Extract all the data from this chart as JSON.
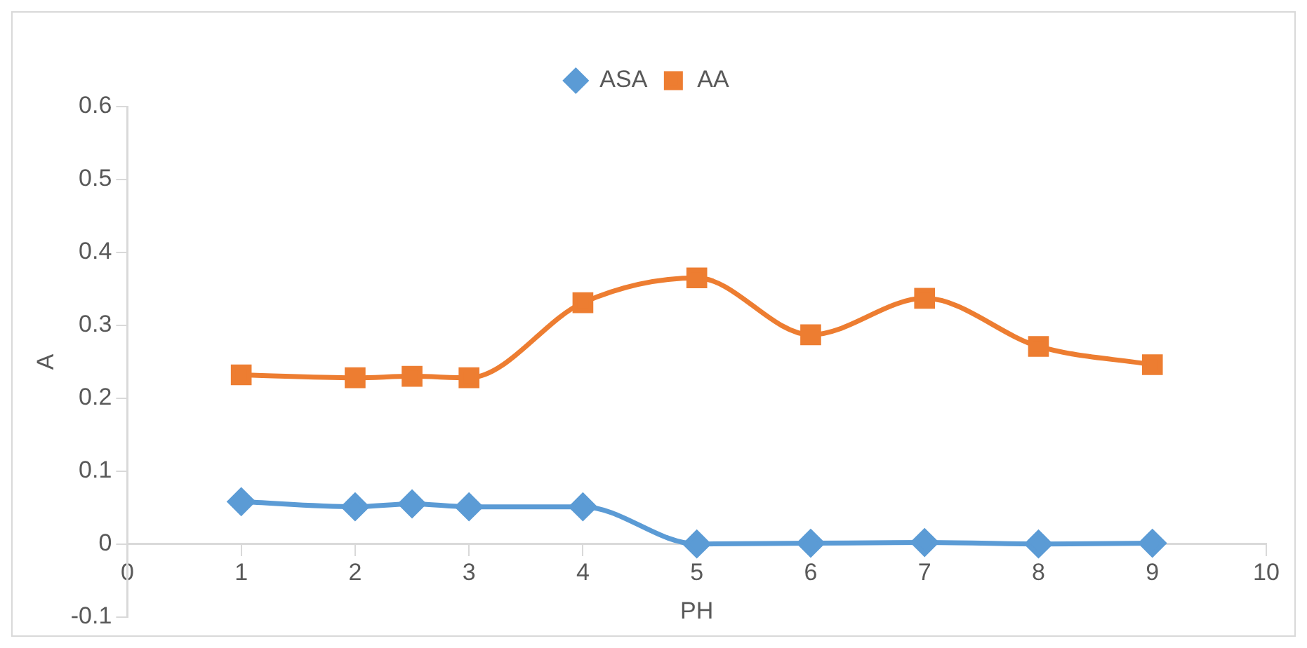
{
  "chart_data": {
    "type": "line",
    "xlabel": "PH",
    "ylabel": "A",
    "legend": "top",
    "grid": false,
    "x": [
      1,
      2,
      2.5,
      3,
      4,
      5,
      6,
      7,
      8,
      9
    ],
    "series": [
      {
        "name": "ASA",
        "color": "#5b9bd5",
        "marker": "diamond",
        "values": [
          0.058,
          0.051,
          0.055,
          0.051,
          0.051,
          0,
          0.001,
          0.002,
          0,
          0.001
        ]
      },
      {
        "name": "AA",
        "color": "#ed7d31",
        "marker": "square",
        "values": [
          0.232,
          0.228,
          0.23,
          0.228,
          0.331,
          0.365,
          0.287,
          0.337,
          0.271,
          0.246
        ]
      }
    ],
    "xlim": [
      0,
      10
    ],
    "xticks": [
      0,
      1,
      2,
      3,
      4,
      5,
      6,
      7,
      8,
      9,
      10
    ],
    "ylim": [
      -0.1,
      0.6
    ],
    "yticks": [
      -0.1,
      0,
      0.1,
      0.2,
      0.3,
      0.4,
      0.5,
      0.6
    ]
  }
}
